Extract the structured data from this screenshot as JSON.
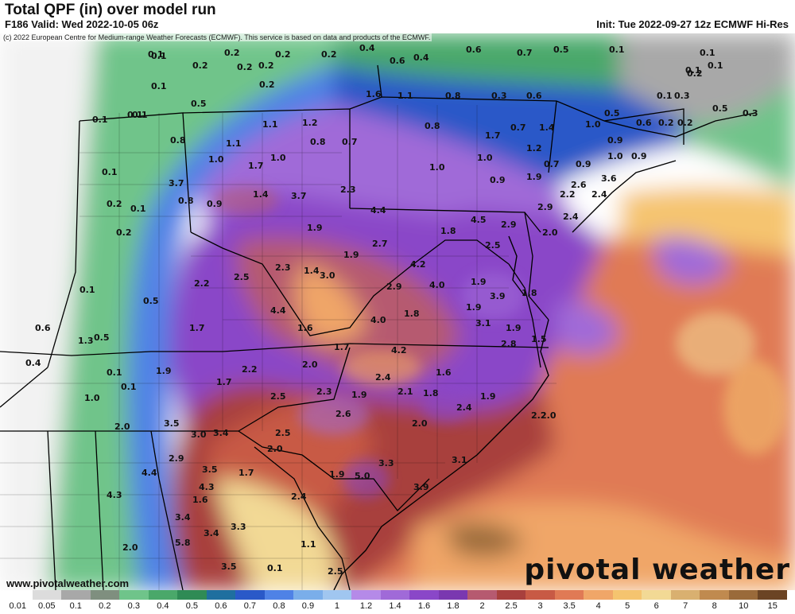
{
  "header": {
    "title": "Total QPF (in) over model run",
    "valid": "F186 Valid: Wed 2022-10-05 06z",
    "init": "Init: Tue 2022-09-27 12z ECMWF Hi-Res",
    "copyright": "(c) 2022 European Centre for Medium-range Weather Forecasts (ECMWF). This service is based on data and products of the ECMWF."
  },
  "footer": {
    "site": "www.pivotalweather.com",
    "logo_text": "pivotal weather"
  },
  "colorbar": {
    "labels": [
      "0.01",
      "0.05",
      "0.1",
      "0.2",
      "0.3",
      "0.4",
      "0.5",
      "0.6",
      "0.7",
      "0.8",
      "0.9",
      "1",
      "1.2",
      "1.4",
      "1.6",
      "1.8",
      "2",
      "2.5",
      "3",
      "3.5",
      "4",
      "5",
      "6",
      "7",
      "8",
      "10",
      "15"
    ],
    "colors": [
      "#ffffff",
      "#dcdcdc",
      "#a8a8a8",
      "#7f8f7f",
      "#6fc48a",
      "#4aa86a",
      "#2f8b55",
      "#1f6f9f",
      "#2a59c8",
      "#4f82e6",
      "#7aaeea",
      "#a0c6f0",
      "#b58ae8",
      "#a06ad8",
      "#8a47c8",
      "#7a38b0",
      "#b65a70",
      "#a8403d",
      "#c85a45",
      "#e07a55",
      "#f0a668",
      "#f5c46f",
      "#f2d995",
      "#d9b070",
      "#c08a4f",
      "#9a6a3a",
      "#6b4424"
    ]
  },
  "map": {
    "value_labels": [
      "0.1",
      "0.2",
      "0.2",
      "0.2",
      "0.4",
      "0.6",
      "0.4",
      "0.6",
      "0.7",
      "0.5",
      "0.1",
      "0.1",
      "0.2",
      "0.2",
      "0.2",
      "0.1",
      "0.1",
      "0.1",
      "0.2",
      "1.6",
      "1.1",
      "0.8",
      "0.3",
      "0.6",
      "0.5",
      "0.2",
      "0.1",
      "0.3",
      "0.5",
      "0.5",
      "0.3",
      "0.1",
      "0.1",
      "0.6",
      "0.2",
      "0.2",
      "1.1",
      "1.2",
      "0.8",
      "0.7",
      "1.4",
      "1.0",
      "0.9",
      "0.8",
      "1.1",
      "1.0",
      "0.8",
      "0.7",
      "0.9",
      "1.7",
      "0.7",
      "0.9",
      "1.0",
      "1.0",
      "1.0",
      "1.7",
      "1.2",
      "1.0",
      "0.9",
      "1.9",
      "2.6",
      "3.6",
      "3.7",
      "0.8",
      "0.9",
      "1.4",
      "3.7",
      "2.3",
      "2.2",
      "2.4",
      "4.4",
      "4.5",
      "2.9",
      "2.4",
      "2.9",
      "2.5",
      "1.8",
      "1.9",
      "2.7",
      "1.9",
      "2.0",
      "2.3",
      "4.2",
      "1.4",
      "2.9",
      "4.0",
      "3.0",
      "1.9",
      "2.2",
      "2.5",
      "3.9",
      "1.9",
      "1.8",
      "1.8",
      "4.0",
      "4.4",
      "3.1",
      "1.7",
      "1.6",
      "1.9",
      "2.8",
      "1.5",
      "1.7",
      "4.2",
      "2.2",
      "2.0",
      "2.4",
      "1.6",
      "1.9",
      "1.7",
      "2.3",
      "1.9",
      "2.1",
      "1.8",
      "2.5",
      "1.9",
      "2.2",
      "2.0",
      "2.6",
      "2.4",
      "2.0",
      "3.5",
      "3.4",
      "2.5",
      "3.0",
      "2.0",
      "1.9",
      "2.9",
      "3.3",
      "3.5",
      "1.7",
      "5.0",
      "3.9",
      "3.1",
      "4.3",
      "2.4",
      "1.6",
      "3.4",
      "3.3",
      "3.4",
      "1.1",
      "5.8",
      "2.5",
      "3.5",
      "0.1",
      "0.1",
      "0.1",
      "0.1",
      "0.2",
      "0.1",
      "0.2",
      "0.1",
      "0.6",
      "0.5",
      "0.4",
      "1.3",
      "0.1",
      "0.5",
      "1.0",
      "0.1",
      "2.0",
      "4.4",
      "4.3",
      "2.0"
    ]
  }
}
